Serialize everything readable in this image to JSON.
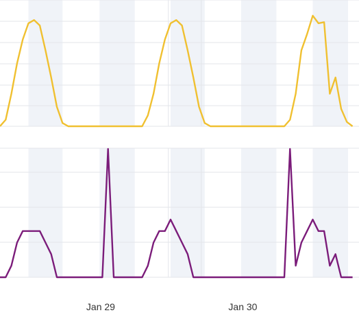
{
  "chart_data": [
    {
      "type": "line",
      "grid": true,
      "color": "#F0C030",
      "x": [
        0,
        1,
        2,
        3,
        4,
        5,
        6,
        7,
        8,
        9,
        10,
        11,
        12,
        13,
        14,
        15,
        16,
        17,
        18,
        19,
        20,
        21,
        22,
        23,
        24,
        25,
        26,
        27,
        28,
        29,
        30,
        31,
        32,
        33,
        34,
        35,
        36,
        37,
        38,
        39,
        40,
        41,
        42,
        43,
        44,
        45,
        46,
        47,
        48,
        49,
        50,
        51,
        52,
        53,
        54,
        55,
        56,
        57,
        58,
        59,
        60,
        61,
        62
      ],
      "series": [
        {
          "values": [
            0,
            0.06,
            0.3,
            0.58,
            0.8,
            0.95,
            0.98,
            0.93,
            0.7,
            0.45,
            0.18,
            0.03,
            0,
            0,
            0,
            0,
            0,
            0,
            0,
            0,
            0,
            0,
            0,
            0,
            0,
            0,
            0.1,
            0.3,
            0.58,
            0.8,
            0.95,
            0.98,
            0.93,
            0.7,
            0.45,
            0.18,
            0.03,
            0,
            0,
            0,
            0,
            0,
            0,
            0,
            0,
            0,
            0,
            0,
            0,
            0,
            0,
            0.06,
            0.3,
            0.7,
            0.85,
            1.02,
            0.95,
            0.96,
            0.3,
            0.45,
            0.16,
            0.04,
            0
          ]
        }
      ]
    },
    {
      "type": "line",
      "grid": true,
      "color": "#7B1C7A",
      "x": [
        0,
        1,
        2,
        3,
        4,
        5,
        6,
        7,
        8,
        9,
        10,
        11,
        12,
        13,
        14,
        15,
        16,
        17,
        18,
        19,
        20,
        21,
        22,
        23,
        24,
        25,
        26,
        27,
        28,
        29,
        30,
        31,
        32,
        33,
        34,
        35,
        36,
        37,
        38,
        39,
        40,
        41,
        42,
        43,
        44,
        45,
        46,
        47,
        48,
        49,
        50,
        51,
        52,
        53,
        54,
        55,
        56,
        57,
        58,
        59,
        60,
        61,
        62
      ],
      "series": [
        {
          "values": [
            0,
            0,
            0.09,
            0.27,
            0.36,
            0.36,
            0.36,
            0.36,
            0.27,
            0.18,
            0,
            0,
            0,
            0,
            0,
            0,
            0,
            0,
            0,
            1.0,
            0,
            0,
            0,
            0,
            0,
            0,
            0.09,
            0.27,
            0.36,
            0.36,
            0.45,
            0.36,
            0.27,
            0.18,
            0,
            0,
            0,
            0,
            0,
            0,
            0,
            0,
            0,
            0,
            0,
            0,
            0,
            0,
            0,
            0,
            0,
            1.0,
            0.09,
            0.27,
            0.36,
            0.45,
            0.36,
            0.36,
            0.09,
            0.18,
            0,
            0,
            0
          ]
        }
      ]
    }
  ],
  "x_ticks": [
    {
      "label": "Jan 29",
      "x": 16.5
    },
    {
      "label": "Jan 30",
      "x": 41.5
    }
  ]
}
